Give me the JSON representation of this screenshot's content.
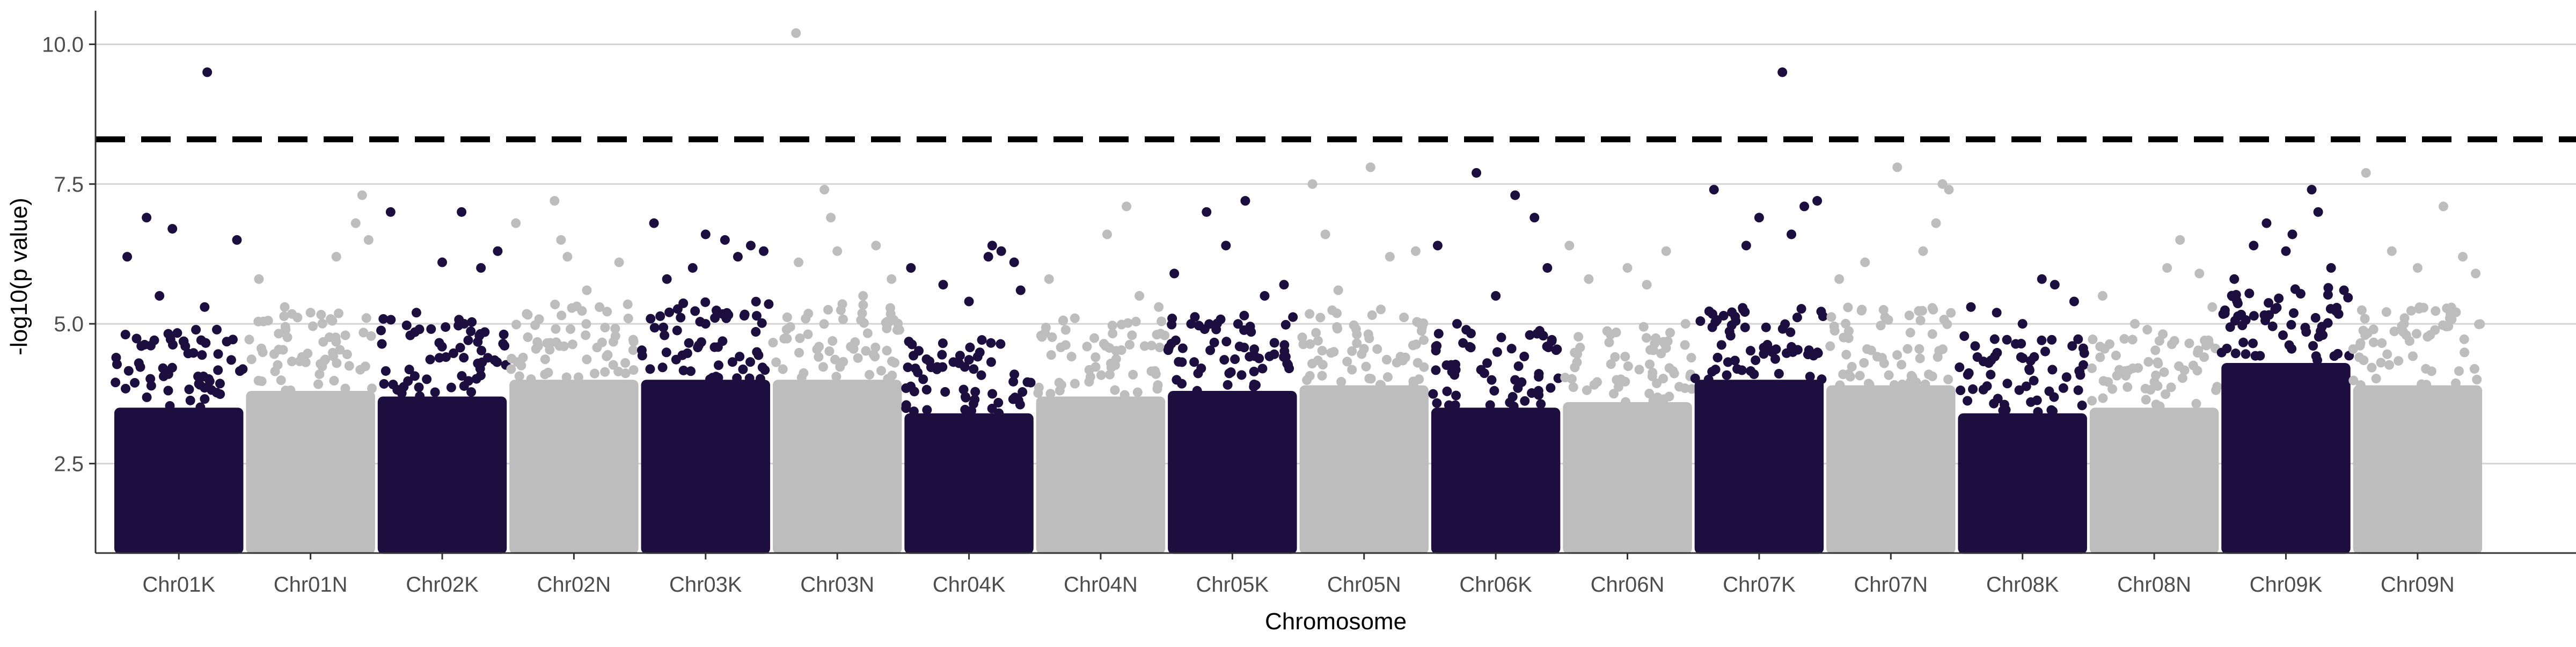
{
  "chart_data": {
    "type": "scatter",
    "subtype": "manhattan",
    "title": "",
    "xlabel": "Chromosome",
    "ylabel": "-log10(p value)",
    "ylim": [
      0.9,
      10.6
    ],
    "yticks": [
      2.5,
      5.0,
      7.5,
      10.0
    ],
    "ytick_labels": [
      "2.5",
      "5.0",
      "7.5",
      "10.0"
    ],
    "threshold": 8.3,
    "threshold_style": "dashed",
    "grid": "horizontal major lines only",
    "legend": "none",
    "colors": {
      "dark": "#1c0f3f",
      "light": "#bdbdbd",
      "threshold": "#000000",
      "grid": "#d4d4d4",
      "axis": "#333333"
    },
    "categories": [
      "Chr01K",
      "Chr01N",
      "Chr02K",
      "Chr02N",
      "Chr03K",
      "Chr03N",
      "Chr04K",
      "Chr04N",
      "Chr05K",
      "Chr05N",
      "Chr06K",
      "Chr06N",
      "Chr07K",
      "Chr07N",
      "Chr08K",
      "Chr08N",
      "Chr09K",
      "Chr09N"
    ],
    "series": [
      {
        "chrom": "Chr01K",
        "color": "dark",
        "top_band": 4.5,
        "peaks": [
          [
            0.1,
            6.2
          ],
          [
            0.25,
            6.9
          ],
          [
            0.35,
            5.5
          ],
          [
            0.45,
            6.7
          ],
          [
            0.55,
            4.6
          ],
          [
            0.7,
            5.3
          ],
          [
            0.95,
            6.5
          ],
          [
            0.72,
            9.5
          ]
        ]
      },
      {
        "chrom": "Chr01N",
        "color": "light",
        "top_band": 4.8,
        "peaks": [
          [
            0.1,
            5.8
          ],
          [
            0.3,
            5.3
          ],
          [
            0.5,
            5.2
          ],
          [
            0.7,
            6.2
          ],
          [
            0.85,
            6.8
          ],
          [
            0.9,
            7.3
          ],
          [
            0.95,
            6.5
          ]
        ]
      },
      {
        "chrom": "Chr02K",
        "color": "dark",
        "top_band": 4.7,
        "peaks": [
          [
            0.1,
            7.0
          ],
          [
            0.3,
            5.2
          ],
          [
            0.5,
            6.1
          ],
          [
            0.65,
            7.0
          ],
          [
            0.8,
            6.0
          ],
          [
            0.93,
            6.3
          ]
        ]
      },
      {
        "chrom": "Chr02N",
        "color": "light",
        "top_band": 5.0,
        "peaks": [
          [
            0.05,
            6.8
          ],
          [
            0.35,
            7.2
          ],
          [
            0.4,
            6.5
          ],
          [
            0.45,
            6.2
          ],
          [
            0.6,
            5.6
          ],
          [
            0.85,
            6.1
          ]
        ]
      },
      {
        "chrom": "Chr03K",
        "color": "dark",
        "top_band": 5.0,
        "peaks": [
          [
            0.1,
            6.8
          ],
          [
            0.2,
            5.8
          ],
          [
            0.4,
            6.0
          ],
          [
            0.5,
            6.6
          ],
          [
            0.65,
            6.5
          ],
          [
            0.75,
            6.2
          ],
          [
            0.85,
            6.4
          ],
          [
            0.95,
            6.3
          ]
        ]
      },
      {
        "chrom": "Chr03N",
        "color": "light",
        "top_band": 5.0,
        "peaks": [
          [
            0.18,
            10.2
          ],
          [
            0.2,
            6.1
          ],
          [
            0.4,
            7.4
          ],
          [
            0.45,
            6.9
          ],
          [
            0.5,
            6.3
          ],
          [
            0.7,
            5.5
          ],
          [
            0.8,
            6.4
          ],
          [
            0.92,
            5.8
          ]
        ]
      },
      {
        "chrom": "Chr04K",
        "color": "dark",
        "top_band": 4.4,
        "peaks": [
          [
            0.05,
            6.0
          ],
          [
            0.3,
            5.7
          ],
          [
            0.5,
            5.4
          ],
          [
            0.65,
            6.2
          ],
          [
            0.68,
            6.4
          ],
          [
            0.75,
            6.3
          ],
          [
            0.85,
            6.1
          ],
          [
            0.9,
            5.6
          ]
        ]
      },
      {
        "chrom": "Chr04N",
        "color": "light",
        "top_band": 4.7,
        "peaks": [
          [
            0.1,
            5.8
          ],
          [
            0.3,
            5.1
          ],
          [
            0.55,
            6.6
          ],
          [
            0.7,
            7.1
          ],
          [
            0.8,
            5.5
          ],
          [
            0.95,
            5.3
          ]
        ]
      },
      {
        "chrom": "Chr05K",
        "color": "dark",
        "top_band": 4.8,
        "peaks": [
          [
            0.05,
            5.9
          ],
          [
            0.3,
            7.0
          ],
          [
            0.45,
            6.4
          ],
          [
            0.6,
            7.2
          ],
          [
            0.75,
            5.5
          ],
          [
            0.9,
            5.7
          ]
        ]
      },
      {
        "chrom": "Chr05N",
        "color": "light",
        "top_band": 4.9,
        "peaks": [
          [
            0.1,
            7.5
          ],
          [
            0.2,
            6.6
          ],
          [
            0.3,
            5.6
          ],
          [
            0.55,
            7.8
          ],
          [
            0.7,
            6.2
          ],
          [
            0.9,
            6.3
          ]
        ]
      },
      {
        "chrom": "Chr06K",
        "color": "dark",
        "top_band": 4.5,
        "peaks": [
          [
            0.05,
            6.4
          ],
          [
            0.2,
            5.0
          ],
          [
            0.35,
            7.7
          ],
          [
            0.5,
            5.5
          ],
          [
            0.65,
            7.3
          ],
          [
            0.8,
            6.9
          ],
          [
            0.9,
            6.0
          ]
        ]
      },
      {
        "chrom": "Chr06N",
        "color": "light",
        "top_band": 4.6,
        "peaks": [
          [
            0.05,
            6.4
          ],
          [
            0.2,
            5.8
          ],
          [
            0.5,
            6.0
          ],
          [
            0.65,
            5.7
          ],
          [
            0.8,
            6.3
          ],
          [
            0.95,
            5.0
          ]
        ]
      },
      {
        "chrom": "Chr07K",
        "color": "dark",
        "top_band": 5.0,
        "peaks": [
          [
            0.15,
            7.4
          ],
          [
            0.4,
            6.4
          ],
          [
            0.5,
            6.9
          ],
          [
            0.68,
            9.5
          ],
          [
            0.75,
            6.6
          ],
          [
            0.85,
            7.1
          ],
          [
            0.95,
            7.2
          ]
        ]
      },
      {
        "chrom": "Chr07N",
        "color": "light",
        "top_band": 4.9,
        "peaks": [
          [
            0.1,
            5.8
          ],
          [
            0.3,
            6.1
          ],
          [
            0.55,
            7.8
          ],
          [
            0.75,
            6.3
          ],
          [
            0.85,
            6.8
          ],
          [
            0.9,
            7.5
          ],
          [
            0.95,
            7.4
          ]
        ]
      },
      {
        "chrom": "Chr08K",
        "color": "dark",
        "top_band": 4.4,
        "peaks": [
          [
            0.1,
            5.3
          ],
          [
            0.3,
            5.2
          ],
          [
            0.5,
            5.0
          ],
          [
            0.65,
            5.8
          ],
          [
            0.75,
            5.7
          ],
          [
            0.9,
            5.4
          ]
        ]
      },
      {
        "chrom": "Chr08N",
        "color": "light",
        "top_band": 4.5,
        "peaks": [
          [
            0.1,
            5.5
          ],
          [
            0.35,
            5.0
          ],
          [
            0.6,
            6.0
          ],
          [
            0.7,
            6.5
          ],
          [
            0.85,
            5.9
          ],
          [
            0.95,
            5.3
          ]
        ]
      },
      {
        "chrom": "Chr09K",
        "color": "dark",
        "top_band": 5.3,
        "peaks": [
          [
            0.1,
            5.8
          ],
          [
            0.25,
            6.4
          ],
          [
            0.35,
            6.8
          ],
          [
            0.5,
            6.3
          ],
          [
            0.55,
            6.6
          ],
          [
            0.7,
            7.4
          ],
          [
            0.75,
            7.0
          ],
          [
            0.85,
            6.0
          ],
          [
            0.95,
            5.6
          ]
        ]
      },
      {
        "chrom": "Chr09N",
        "color": "light",
        "top_band": 4.9,
        "peaks": [
          [
            0.1,
            7.7
          ],
          [
            0.3,
            6.3
          ],
          [
            0.5,
            6.0
          ],
          [
            0.7,
            7.1
          ],
          [
            0.85,
            6.2
          ],
          [
            0.95,
            5.9
          ]
        ]
      }
    ]
  }
}
